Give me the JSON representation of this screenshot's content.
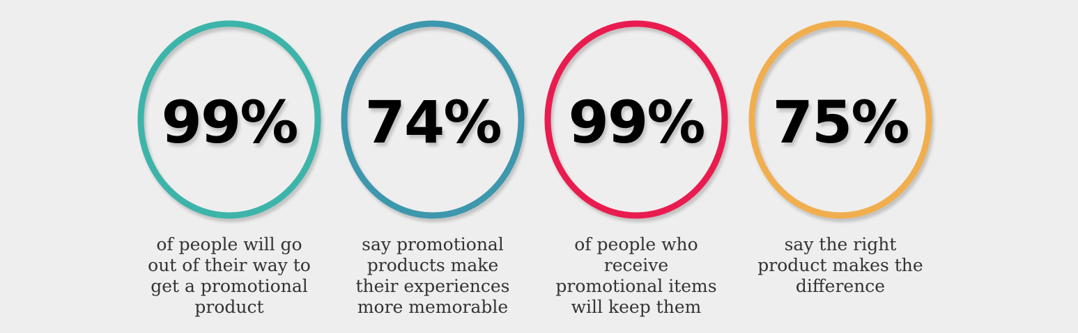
{
  "stats": [
    {
      "value": "99%",
      "caption": [
        "of people will go",
        "out of their way to",
        "get a promotional",
        "product"
      ]
    },
    {
      "value": "74%",
      "caption": [
        "say promotional",
        "products make",
        "their experiences",
        "more memorable"
      ]
    },
    {
      "value": "99%",
      "caption": [
        "of people who",
        "receive",
        "promotional items",
        "will keep them"
      ]
    },
    {
      "value": "75%",
      "caption": [
        "say the right",
        "product makes the",
        "difference"
      ]
    }
  ]
}
